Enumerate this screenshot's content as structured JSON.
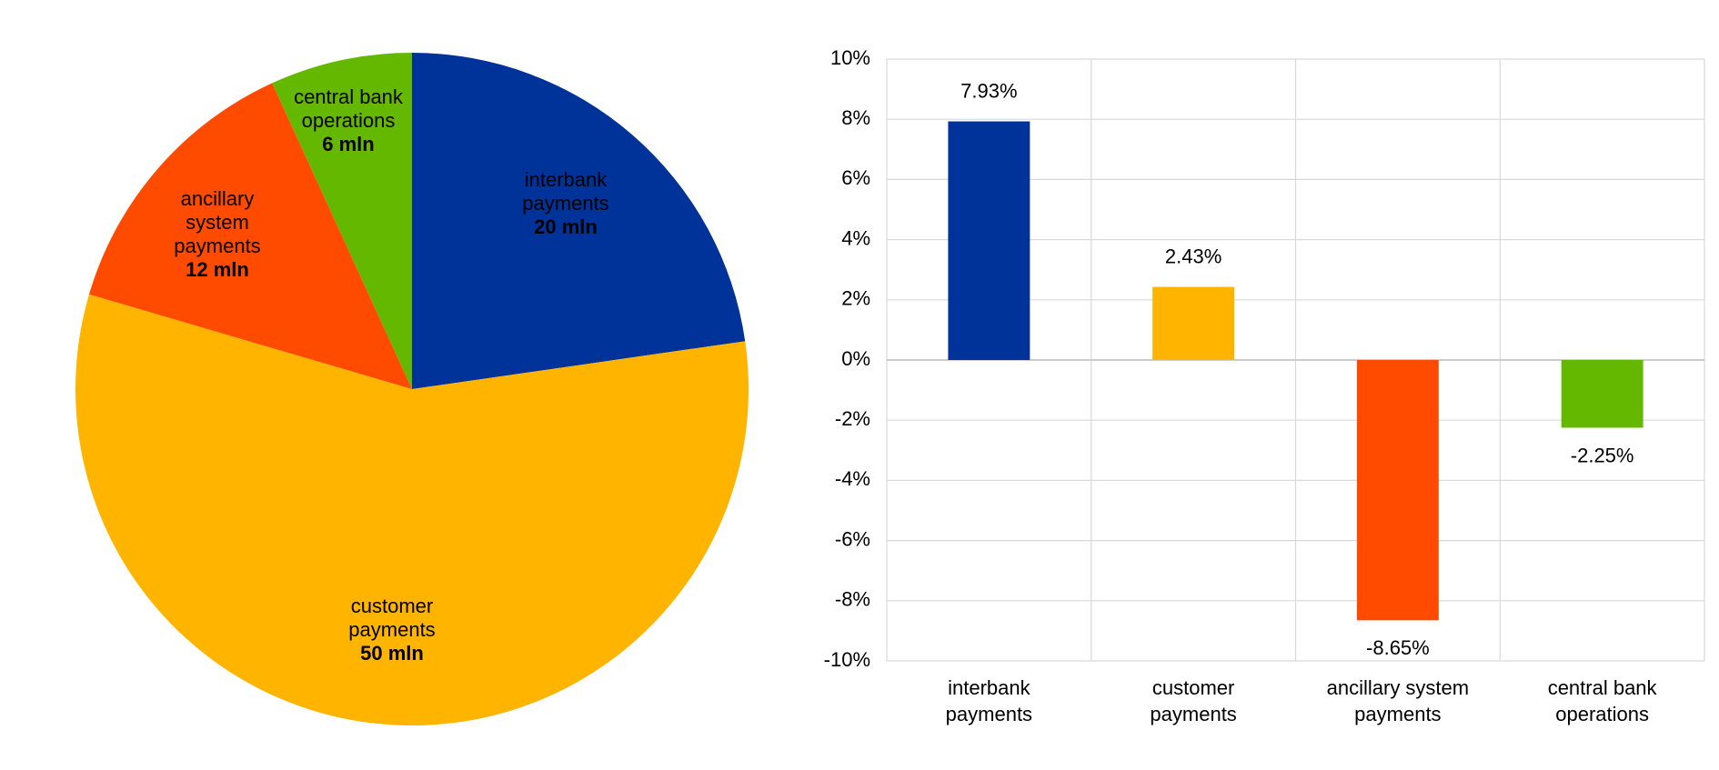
{
  "chart_data": [
    {
      "type": "pie",
      "categories": [
        "interbank payments",
        "customer payments",
        "ancillary system payments",
        "central bank operations"
      ],
      "values": [
        20,
        50,
        12,
        6
      ],
      "value_labels": [
        "20 mln",
        "50 mln",
        "12 mln",
        "6 mln"
      ],
      "colors": [
        "#003399",
        "#ffb400",
        "#ff4b00",
        "#65b800"
      ]
    },
    {
      "type": "bar",
      "categories": [
        "interbank payments",
        "customer payments",
        "ancillary system payments",
        "central bank operations"
      ],
      "values": [
        7.93,
        2.43,
        -8.65,
        -2.25
      ],
      "value_labels": [
        "7.93%",
        "2.43%",
        "-8.65%",
        "-2.25%"
      ],
      "colors": [
        "#003399",
        "#ffb400",
        "#ff4b00",
        "#65b800"
      ],
      "ylim": [
        -10,
        10
      ],
      "yticks": [
        {
          "value": -10,
          "label": "-10%"
        },
        {
          "value": -8,
          "label": "-8%"
        },
        {
          "value": -6,
          "label": "-6%"
        },
        {
          "value": -4,
          "label": "-4%"
        },
        {
          "value": -2,
          "label": "-2%"
        },
        {
          "value": 0,
          "label": "0%"
        },
        {
          "value": 2,
          "label": "2%"
        },
        {
          "value": 4,
          "label": "4%"
        },
        {
          "value": 6,
          "label": "6%"
        },
        {
          "value": 8,
          "label": "8%"
        },
        {
          "value": 10,
          "label": "10%"
        }
      ],
      "grid": true
    }
  ]
}
